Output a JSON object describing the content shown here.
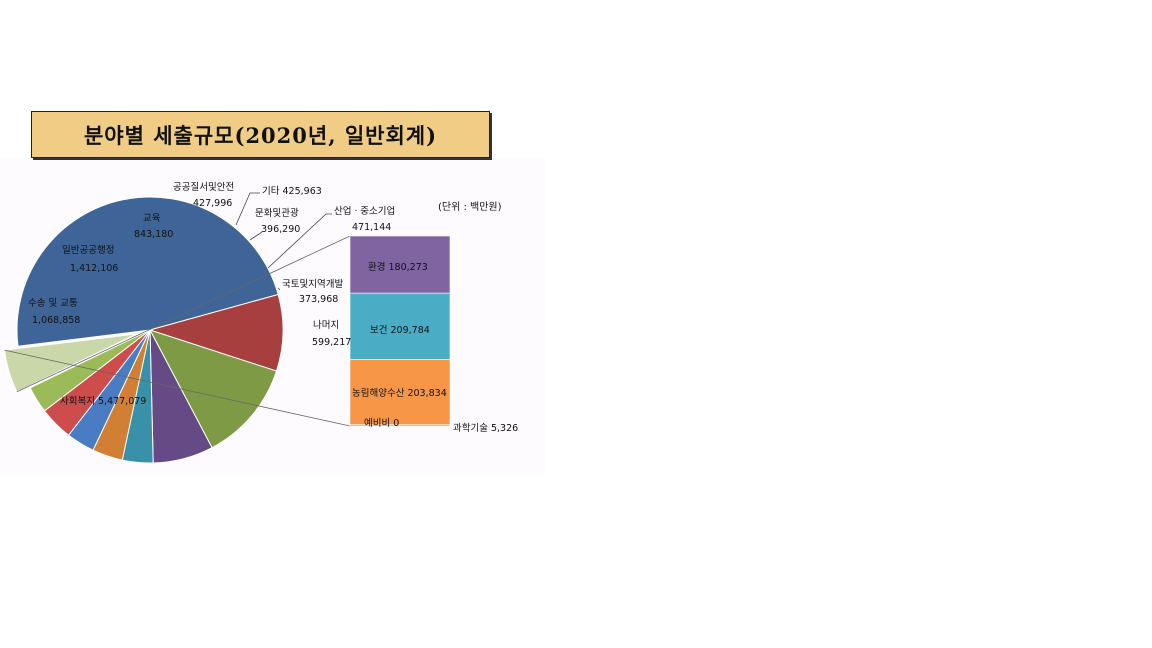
{
  "chart_data": {
    "type": "pie",
    "title": "분야별 세출규모(2020년, 일반회계)",
    "unit_note": "(단위 : 백만원)",
    "slices": [
      {
        "name": "사회복지",
        "label": "사회복지",
        "value_text": "5,477,079",
        "value": 5477079,
        "color": "#3f6598"
      },
      {
        "name": "수송 및 교통",
        "label": "수송 및 교통",
        "value_text": "1,068,858",
        "value": 1068858,
        "color": "#a63f3d"
      },
      {
        "name": "일반공공행정",
        "label": "일반공공행정",
        "value_text": "1,412,106",
        "value": 1412106,
        "color": "#7e9a44"
      },
      {
        "name": "교육",
        "label": "교육",
        "value_text": "843,180",
        "value": 843180,
        "color": "#654a86"
      },
      {
        "name": "공공질서및안전",
        "label": "공공질서및안전",
        "value_text": "427,996",
        "value": 427996,
        "color": "#3991a9"
      },
      {
        "name": "기타",
        "label": "기타",
        "value_text": "425,963",
        "value": 425963,
        "color": "#d17f35"
      },
      {
        "name": "문화및관광",
        "label": "문화및관광",
        "value_text": "396,290",
        "value": 396290,
        "color": "#4a7cc4"
      },
      {
        "name": "산업·중소기업",
        "label": "산업ㆍ중소기업",
        "value_text": "471,144",
        "value": 471144,
        "color": "#cd4c4c"
      },
      {
        "name": "국토및지역개발",
        "label": "국토및지역개발",
        "value_text": "373,968",
        "value": 373968,
        "color": "#9bbb59"
      },
      {
        "name": "나머지",
        "label": "나머지",
        "value_text": "599,217",
        "value": 599217,
        "color": "#c9d7a9"
      }
    ],
    "breakdown": {
      "of": "나머지",
      "items": [
        {
          "name": "환경",
          "value_text": "180,273",
          "value": 180273,
          "color": "#8064a2"
        },
        {
          "name": "보건",
          "value_text": "209,784",
          "value": 209784,
          "color": "#4bacc6"
        },
        {
          "name": "농림해양수산",
          "value_text": "203,834",
          "value": 203834,
          "color": "#f79646"
        },
        {
          "name": "예비비",
          "value_text": "0",
          "value": 0,
          "color": "#f79646"
        },
        {
          "name": "과학기술",
          "value_text": "5,326",
          "value": 5326,
          "color": "#f79646"
        }
      ]
    }
  }
}
